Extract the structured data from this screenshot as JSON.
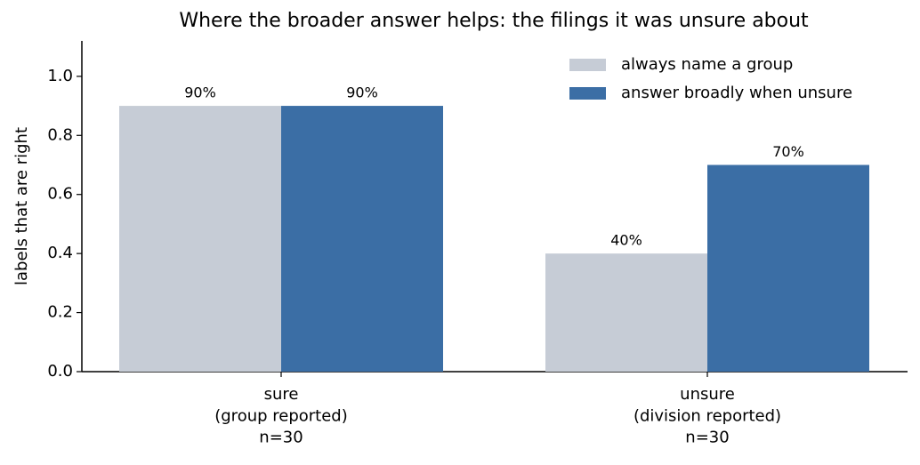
{
  "chart_data": {
    "type": "bar",
    "title": "Where the broader answer helps: the filings it was unsure about",
    "y_label": "labels that are right",
    "categories": [
      "sure\n(group reported)\nn=30",
      "unsure\n(division reported)\nn=30"
    ],
    "series": [
      {
        "name": "always name a group",
        "color": "#c6ccd6",
        "values": [
          0.9,
          0.4
        ],
        "value_labels": [
          "90%",
          "40%"
        ]
      },
      {
        "name": "answer broadly when unsure",
        "color": "#3b6ea5",
        "values": [
          0.9,
          0.7
        ],
        "value_labels": [
          "90%",
          "70%"
        ]
      }
    ],
    "ylim": [
      0,
      1.12
    ],
    "yticks": [
      {
        "value": 0,
        "label": "0.0"
      },
      0.2,
      0.4,
      0.6,
      0.8,
      {
        "value": 1,
        "label": "1.0"
      }
    ],
    "grid": false,
    "legend": "upper right"
  }
}
